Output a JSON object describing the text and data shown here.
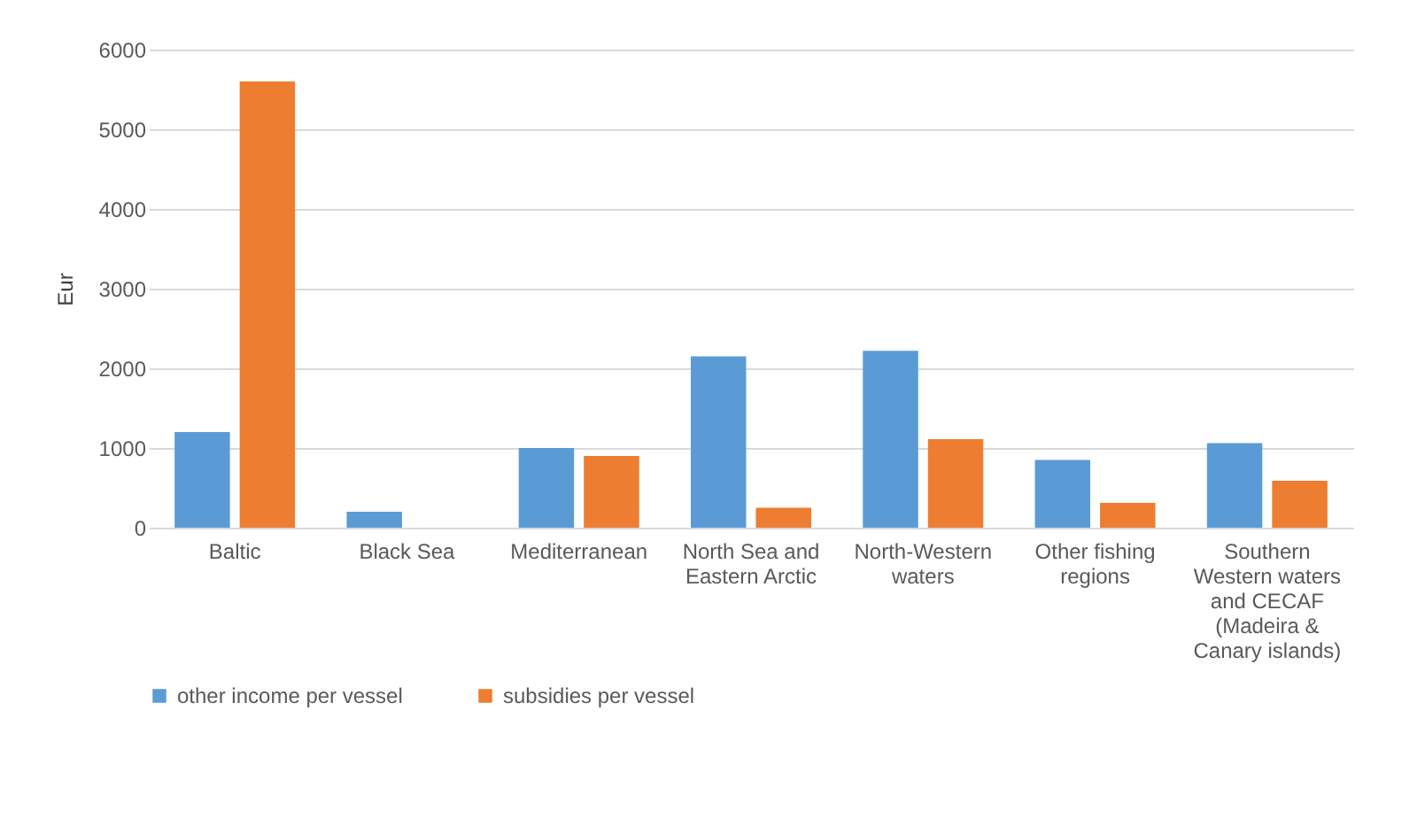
{
  "chart_data": {
    "type": "bar",
    "ylabel": "Eur",
    "categories": [
      "Baltic",
      "Black Sea",
      "Mediterranean",
      "North Sea and Eastern Arctic",
      "North-Western waters",
      "Other fishing regions",
      "Southern Western waters and CECAF (Madeira & Canary islands)"
    ],
    "series": [
      {
        "name": "other income per vessel",
        "color": "#5b9bd5",
        "values": [
          1200,
          200,
          1000,
          2150,
          2220,
          850,
          1060
        ]
      },
      {
        "name": "subsidies per vessel",
        "color": "#ed7d31",
        "values": [
          5600,
          null,
          900,
          250,
          1110,
          310,
          590
        ]
      }
    ],
    "ylim": [
      0,
      6000
    ],
    "yticks": [
      0,
      1000,
      2000,
      3000,
      4000,
      5000,
      6000
    ],
    "grid": "y",
    "legend": "bottom"
  }
}
